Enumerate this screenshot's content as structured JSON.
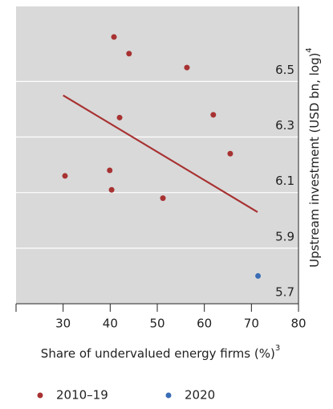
{
  "chart_data": {
    "type": "scatter",
    "x_label": "Share of undervalued energy firms (%)",
    "x_label_sup": "3",
    "y_label": "Upstream investment (USD bn, log)",
    "y_label_sup": "4",
    "xlim": [
      20,
      80
    ],
    "xticks": [
      30,
      40,
      50,
      60,
      70,
      80
    ],
    "ylim": [
      5.7,
      6.77
    ],
    "yticks": [
      5.7,
      5.9,
      6.1,
      6.3,
      6.5
    ],
    "grid": true,
    "background": "#d9d9d9",
    "series": [
      {
        "name": "2010–19",
        "color": "#a83232",
        "x": [
          40.8,
          44.0,
          56.3,
          42.0,
          61.9,
          65.5,
          30.4,
          39.9,
          40.3,
          51.2
        ],
        "values": [
          6.66,
          6.6,
          6.55,
          6.37,
          6.38,
          6.24,
          6.16,
          6.18,
          6.11,
          6.08
        ]
      },
      {
        "name": "2020",
        "color": "#3a6db5",
        "x": [
          71.4
        ],
        "values": [
          5.8
        ]
      }
    ],
    "trend_line": {
      "color": "#a83232",
      "x": [
        30,
        71.3
      ],
      "values": [
        6.45,
        6.03
      ]
    }
  }
}
